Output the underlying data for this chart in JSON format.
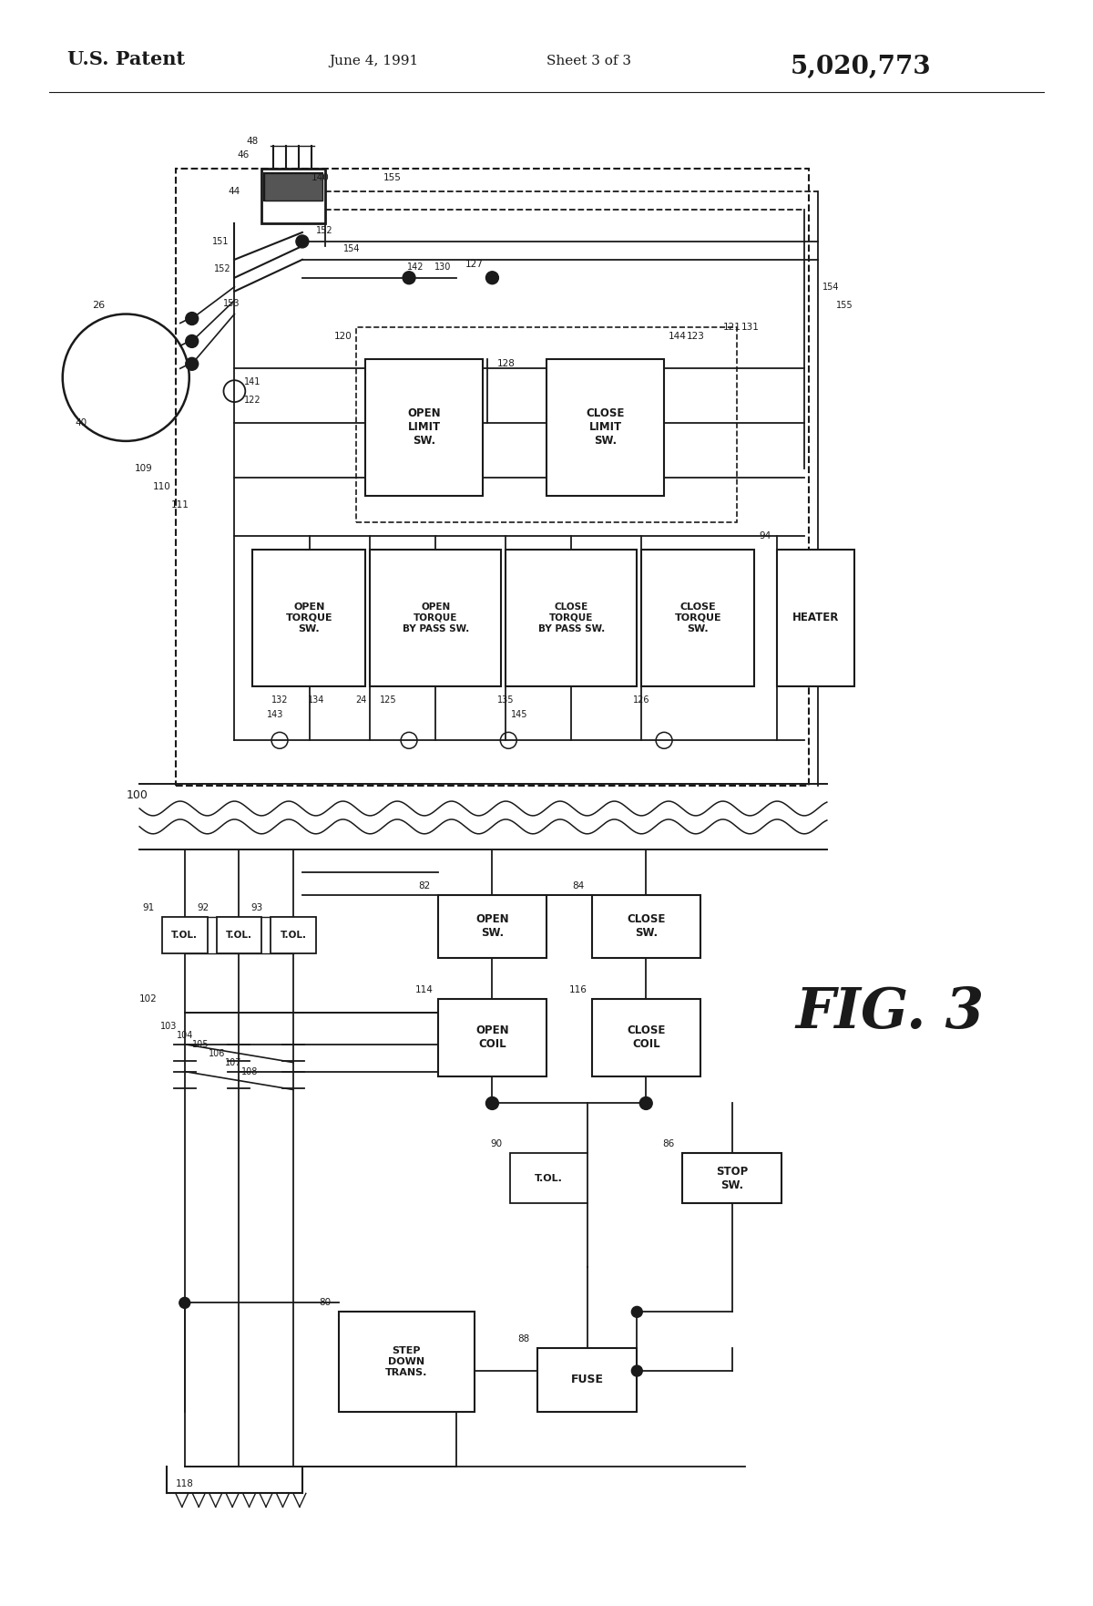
{
  "title_left": "U.S. Patent",
  "title_center": "June 4, 1991",
  "title_right": "Sheet 3 of 3",
  "title_patent": "5,020,773",
  "fig_label": "FIG. 3",
  "background": "#ffffff",
  "line_color": "#1a1a1a",
  "text_color": "#1a1a1a"
}
